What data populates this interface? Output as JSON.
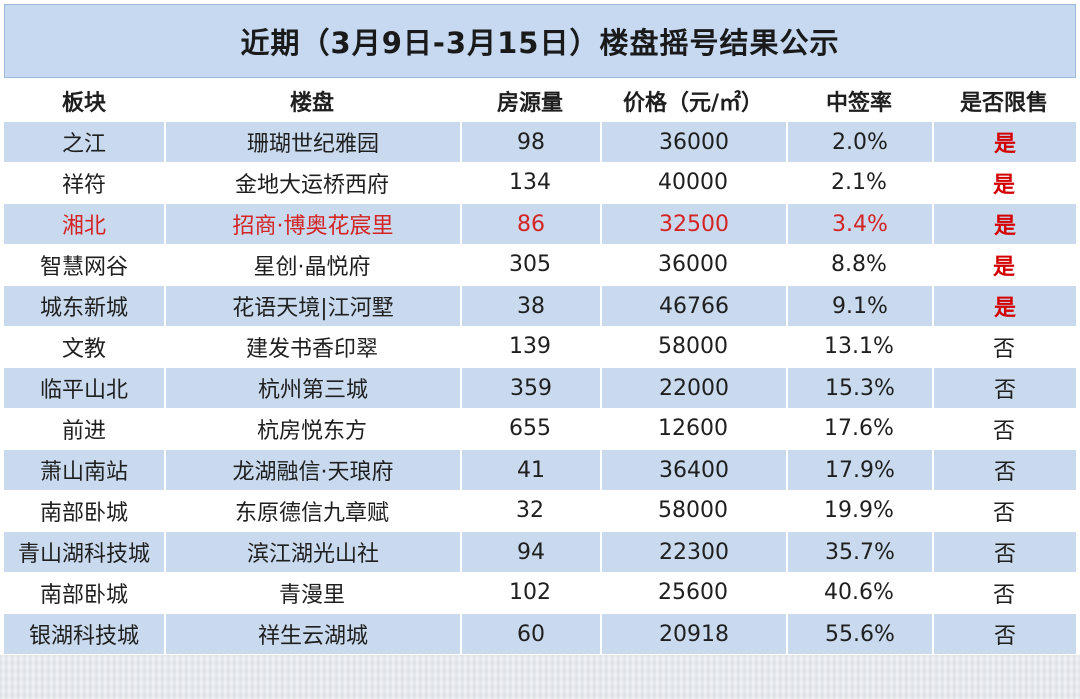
{
  "title": "近期（3月9日-3月15日）楼盘摇号结果公示",
  "headers": [
    "板块",
    "楼盘",
    "房源量",
    "价格（元/㎡）",
    "中签率",
    "是否限售"
  ],
  "rows": [
    {
      "district": "之江",
      "project": "珊瑚世纪雅园",
      "units": "98",
      "price": "36000",
      "rate": "2.0%",
      "restricted": "是"
    },
    {
      "district": "祥符",
      "project": "金地大运桥西府",
      "units": "134",
      "price": "40000",
      "rate": "2.1%",
      "restricted": "是"
    },
    {
      "district": "湘北",
      "project": "招商·博奥花宸里",
      "units": "86",
      "price": "32500",
      "rate": "3.4%",
      "restricted": "是"
    },
    {
      "district": "智慧网谷",
      "project": "星创·晶悦府",
      "units": "305",
      "price": "36000",
      "rate": "8.8%",
      "restricted": "是"
    },
    {
      "district": "城东新城",
      "project": "花语天境|江河墅",
      "units": "38",
      "price": "46766",
      "rate": "9.1%",
      "restricted": "是"
    },
    {
      "district": "文教",
      "project": "建发书香印翠",
      "units": "139",
      "price": "58000",
      "rate": "13.1%",
      "restricted": "否"
    },
    {
      "district": "临平山北",
      "project": "杭州第三城",
      "units": "359",
      "price": "22000",
      "rate": "15.3%",
      "restricted": "否"
    },
    {
      "district": "前进",
      "project": "杭房悦东方",
      "units": "655",
      "price": "12600",
      "rate": "17.6%",
      "restricted": "否"
    },
    {
      "district": "萧山南站",
      "project": "龙湖融信·天琅府",
      "units": "41",
      "price": "36400",
      "rate": "17.9%",
      "restricted": "否"
    },
    {
      "district": "南部卧城",
      "project": "东原德信九章赋",
      "units": "32",
      "price": "58000",
      "rate": "19.9%",
      "restricted": "否"
    },
    {
      "district": "青山湖科技城",
      "project": "滨江湖光山社",
      "units": "94",
      "price": "22300",
      "rate": "35.7%",
      "restricted": "否"
    },
    {
      "district": "南部卧城",
      "project": "青漫里",
      "units": "102",
      "price": "25600",
      "rate": "40.6%",
      "restricted": "否"
    },
    {
      "district": "银湖科技城",
      "project": "祥生云湖城",
      "units": "60",
      "price": "20918",
      "rate": "55.6%",
      "restricted": "否"
    }
  ],
  "colors": {
    "title_bg": "#c6d9f1",
    "row_shade": "#c9d9ee",
    "highlight_text": "#d42424",
    "yes_text": "#d40000"
  }
}
